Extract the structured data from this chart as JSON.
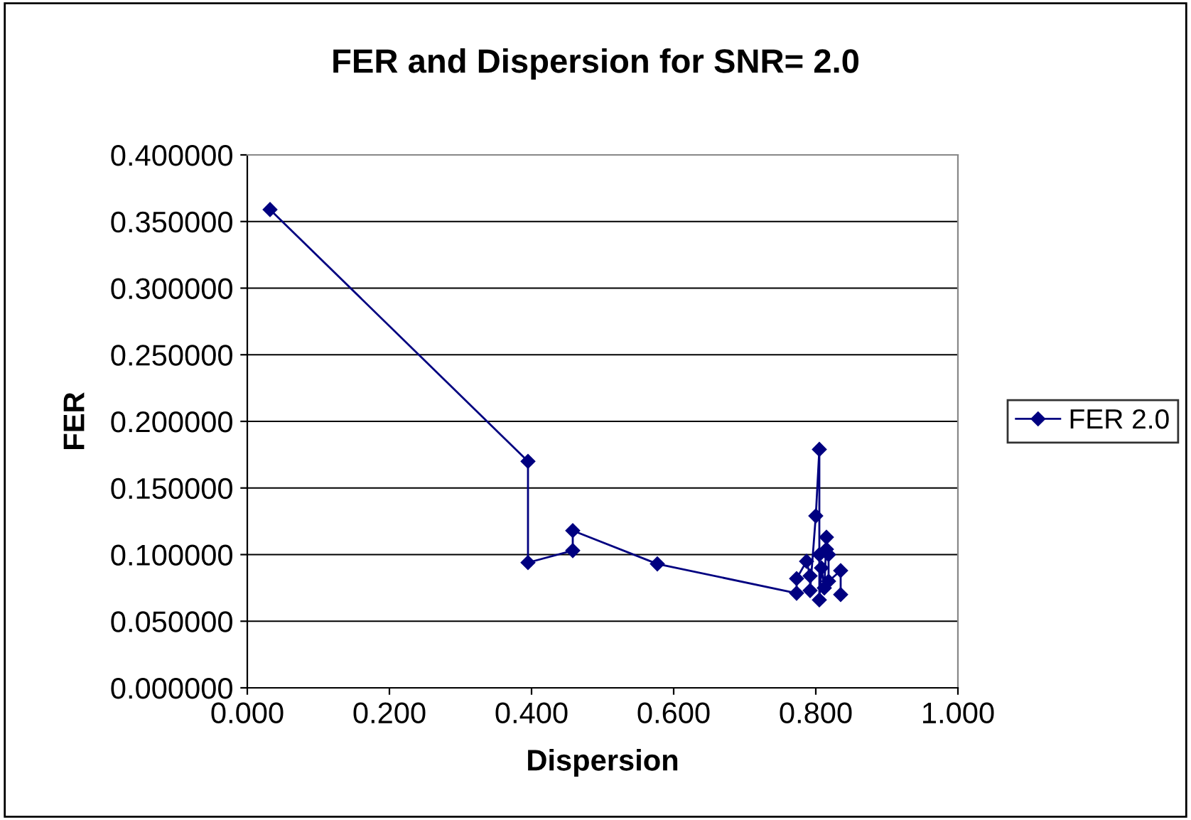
{
  "chart_data": {
    "type": "line",
    "title": "FER and Dispersion for SNR= 2.0",
    "xlabel": "Dispersion",
    "ylabel": "FER",
    "xlim": [
      0,
      1
    ],
    "xticks": [
      {
        "value": 0,
        "label": "0.000"
      },
      {
        "value": 0.2,
        "label": "0.200"
      },
      {
        "value": 0.4,
        "label": "0.400"
      },
      {
        "value": 0.6,
        "label": "0.600"
      },
      {
        "value": 0.8,
        "label": "0.800"
      },
      {
        "value": 1,
        "label": "1.000"
      }
    ],
    "ylim": [
      0,
      0.4
    ],
    "yticks": [
      {
        "value": 0,
        "label": "0.000000"
      },
      {
        "value": 0.05,
        "label": "0.050000"
      },
      {
        "value": 0.1,
        "label": "0.100000"
      },
      {
        "value": 0.15,
        "label": "0.150000"
      },
      {
        "value": 0.2,
        "label": "0.200000"
      },
      {
        "value": 0.25,
        "label": "0.250000"
      },
      {
        "value": 0.3,
        "label": "0.300000"
      },
      {
        "value": 0.35,
        "label": "0.350000"
      },
      {
        "value": 0.4,
        "label": "0.400000"
      }
    ],
    "grid": "y",
    "legend": "right",
    "marker": "diamond",
    "line_style": "solid",
    "series": [
      {
        "name": "FER 2.0",
        "color": "#000080",
        "x": [
          0.032,
          0.395,
          0.395,
          0.458,
          0.458,
          0.577,
          0.773,
          0.773,
          0.787,
          0.792,
          0.792,
          0.8,
          0.805,
          0.805,
          0.805,
          0.808,
          0.812,
          0.815,
          0.815,
          0.818,
          0.818,
          0.835,
          0.835
        ],
        "values": [
          0.359,
          0.17,
          0.094,
          0.103,
          0.118,
          0.093,
          0.071,
          0.082,
          0.095,
          0.084,
          0.073,
          0.129,
          0.179,
          0.1,
          0.066,
          0.09,
          0.075,
          0.113,
          0.104,
          0.1,
          0.08,
          0.088,
          0.07
        ]
      }
    ]
  }
}
